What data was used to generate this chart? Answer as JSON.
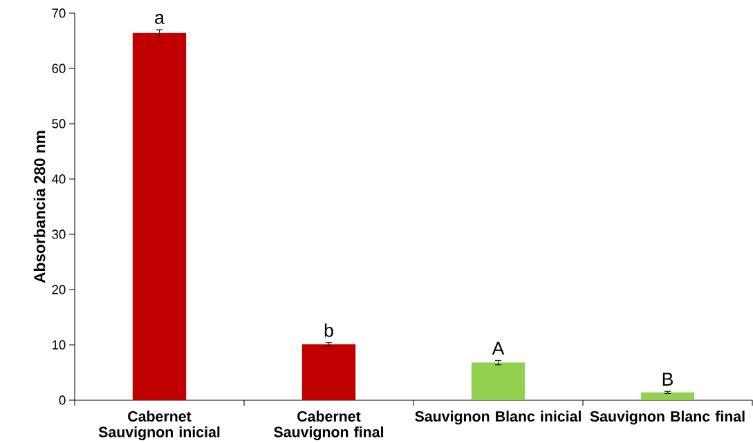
{
  "chart_data": {
    "type": "bar",
    "ylabel": "Absorbancia 280 nm",
    "categories": [
      "Cabernet Sauvignon inicial",
      "Cabernet Sauvignon final",
      "Sauvignon Blanc inicial",
      "Sauvignon Blanc final"
    ],
    "values": [
      66.4,
      10.1,
      6.8,
      1.4
    ],
    "errors": [
      0.6,
      0.3,
      0.4,
      0.2
    ],
    "colors": [
      "#c00000",
      "#c00000",
      "#92d050",
      "#92d050"
    ],
    "ylim": [
      0,
      70
    ],
    "yticks": [
      0,
      10,
      20,
      30,
      40,
      50,
      60,
      70
    ],
    "annotations": [
      {
        "text": "a",
        "x": "Cabernet Sauvignon inicial",
        "y": 66.4
      },
      {
        "text": "b",
        "x": "Cabernet Sauvignon final",
        "y": 10.1
      },
      {
        "text": "A",
        "x": "Sauvignon Blanc inicial",
        "y": 6.8
      },
      {
        "text": "B",
        "x": "Sauvignon Blanc final",
        "y": 1.4
      }
    ]
  }
}
